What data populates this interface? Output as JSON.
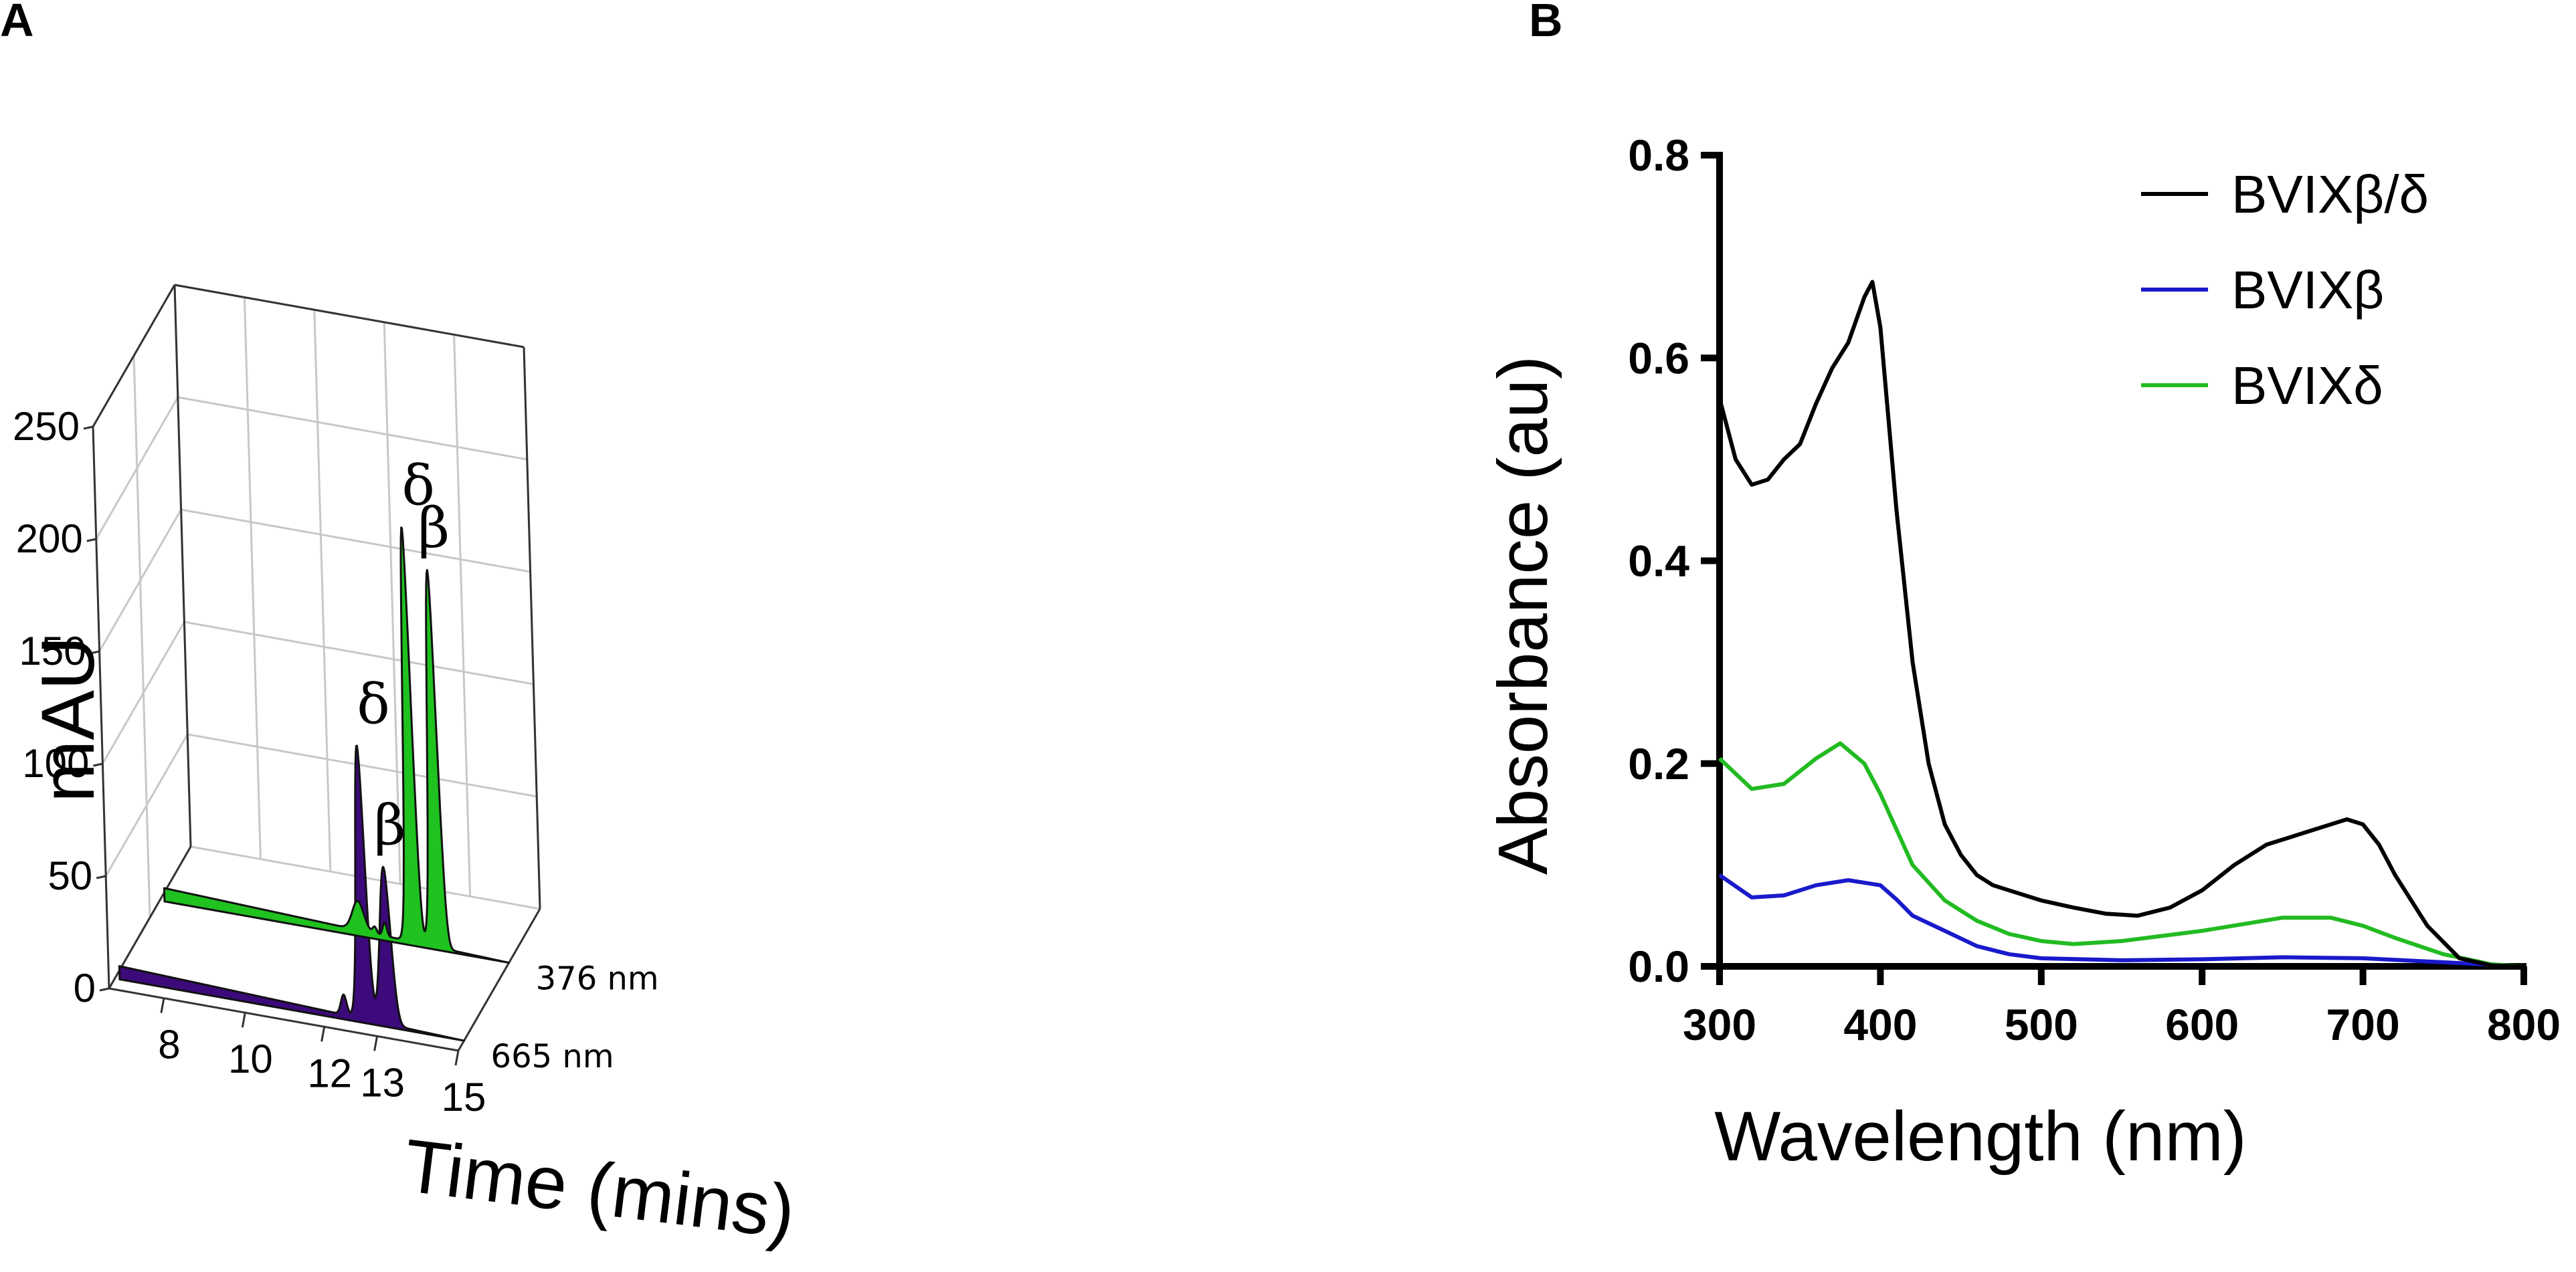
{
  "panels": {
    "a": "A",
    "b": "B"
  },
  "chart_data": [
    {
      "type": "area",
      "panel": "A",
      "title": "",
      "xlabel": "Time (mins)",
      "ylabel": "mAU",
      "x_ticks": [
        8,
        10,
        12,
        13,
        15
      ],
      "y_ticks": [
        0,
        50,
        100,
        150,
        200,
        250
      ],
      "xlim": [
        6.4,
        15
      ],
      "ylim": [
        0,
        250
      ],
      "series": [
        {
          "name": "665 nm",
          "color": "#3c0a7a",
          "baseline_start": 6,
          "baseline_end": 0,
          "peaks": [
            {
              "label": "",
              "center": 12.05,
              "height": 9,
              "width": 0.07
            },
            {
              "label": "δ",
              "center": 12.55,
              "height": 122,
              "width": 0.11
            },
            {
              "label": "β",
              "center": 13.12,
              "height": 70,
              "width": 0.13
            }
          ]
        },
        {
          "name": "376 nm",
          "color": "#1fc21f",
          "baseline_start": 6,
          "baseline_end": 0,
          "peaks": [
            {
              "label": "",
              "center": 11.3,
              "height": 13,
              "width": 0.14
            },
            {
              "label": "",
              "center": 11.7,
              "height": 3,
              "width": 0.05
            },
            {
              "label": "",
              "center": 11.95,
              "height": 6,
              "width": 0.05
            },
            {
              "label": "δ",
              "center": 12.65,
              "height": 185,
              "width": 0.1
            },
            {
              "label": "β",
              "center": 13.25,
              "height": 168,
              "width": 0.11
            }
          ]
        }
      ]
    },
    {
      "type": "line",
      "panel": "B",
      "title": "",
      "xlabel": "Wavelength (nm)",
      "ylabel": "Absorbance (au)",
      "xlim": [
        300,
        800
      ],
      "ylim": [
        0,
        0.8
      ],
      "x_ticks": [
        300,
        400,
        500,
        600,
        700,
        800
      ],
      "y_ticks": [
        "0.0",
        "0.2",
        "0.4",
        "0.6",
        "0.8"
      ],
      "legend_position": "top-right",
      "series": [
        {
          "name": "BVIXβ/δ",
          "color": "#000000",
          "x": [
            300,
            310,
            320,
            330,
            340,
            350,
            360,
            370,
            380,
            390,
            395,
            400,
            410,
            420,
            430,
            440,
            450,
            460,
            470,
            480,
            500,
            520,
            540,
            560,
            580,
            600,
            620,
            640,
            660,
            680,
            690,
            700,
            710,
            720,
            740,
            760,
            780,
            800
          ],
          "y": [
            0.56,
            0.5,
            0.475,
            0.48,
            0.5,
            0.515,
            0.555,
            0.59,
            0.615,
            0.66,
            0.675,
            0.63,
            0.45,
            0.3,
            0.2,
            0.14,
            0.11,
            0.09,
            0.08,
            0.075,
            0.065,
            0.058,
            0.052,
            0.05,
            0.058,
            0.075,
            0.1,
            0.12,
            0.13,
            0.14,
            0.145,
            0.14,
            0.12,
            0.09,
            0.04,
            0.008,
            0.001,
            0.0
          ]
        },
        {
          "name": "BVIXβ",
          "color": "#1a1acc",
          "x": [
            300,
            320,
            340,
            360,
            380,
            400,
            410,
            420,
            440,
            460,
            480,
            500,
            550,
            600,
            650,
            700,
            750,
            800
          ],
          "y": [
            0.09,
            0.068,
            0.07,
            0.08,
            0.085,
            0.08,
            0.066,
            0.05,
            0.035,
            0.02,
            0.012,
            0.008,
            0.006,
            0.007,
            0.009,
            0.008,
            0.004,
            0.0
          ]
        },
        {
          "name": "BVIXδ",
          "color": "#22bb22",
          "x": [
            300,
            320,
            340,
            360,
            375,
            390,
            400,
            410,
            420,
            440,
            460,
            480,
            500,
            520,
            550,
            600,
            650,
            680,
            700,
            720,
            750,
            780,
            800
          ],
          "y": [
            0.205,
            0.175,
            0.18,
            0.205,
            0.22,
            0.2,
            0.17,
            0.135,
            0.1,
            0.065,
            0.045,
            0.032,
            0.025,
            0.022,
            0.025,
            0.035,
            0.048,
            0.048,
            0.04,
            0.028,
            0.012,
            0.002,
            0.0
          ]
        }
      ]
    }
  ]
}
